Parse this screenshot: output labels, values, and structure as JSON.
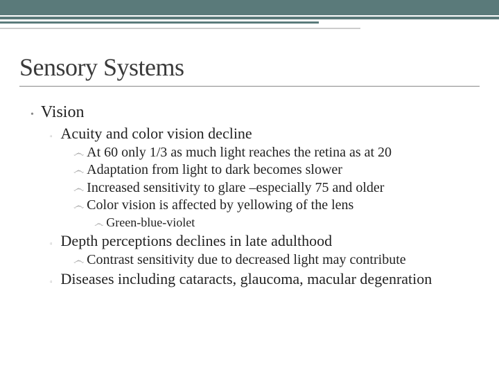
{
  "colors": {
    "topbar": "#5a7a7a",
    "background": "#ffffff",
    "title_text": "#3a3a3a",
    "body_text": "#222222",
    "bullet_gray": "#888888",
    "bullet_light": "#aaaaaa",
    "underline": "#888888"
  },
  "typography": {
    "font_family": "Georgia, serif",
    "title_size_pt": 27,
    "level1_size_pt": 18,
    "level2_size_pt": 17,
    "level3_size_pt": 15,
    "level4_size_pt": 14
  },
  "title": "Sensory Systems",
  "outline": {
    "l1": {
      "label": "Vision"
    },
    "l2a": {
      "label": "Acuity and color vision decline"
    },
    "l3a": {
      "label": "At 60 only 1/3 as much light reaches the retina as at 20"
    },
    "l3b": {
      "label": "Adaptation from light to dark becomes slower"
    },
    "l3c": {
      "label": "Increased sensitivity to glare –especially 75 and older"
    },
    "l3d": {
      "label": "Color vision is affected by yellowing of the lens"
    },
    "l4a": {
      "label": "Green-blue-violet"
    },
    "l2b": {
      "label": "Depth perceptions declines in late adulthood"
    },
    "l3e": {
      "label": "Contrast sensitivity due to decreased light may contribute"
    },
    "l2c": {
      "label": "Diseases including cataracts, glaucoma, macular degenration"
    }
  },
  "bullets": {
    "level1": "•",
    "level2": "▫",
    "level3": "෴",
    "level4": "෴"
  }
}
